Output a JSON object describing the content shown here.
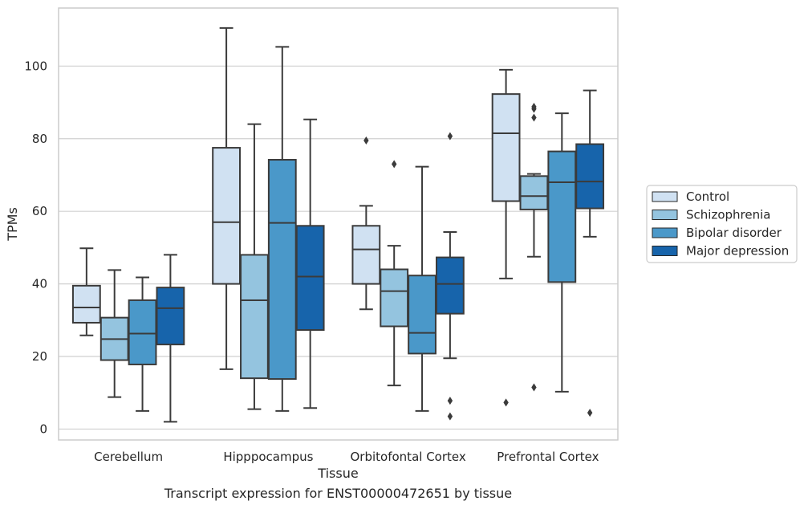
{
  "caption": "Transcript expression for ENST00000472651 by tissue",
  "chart_data": {
    "type": "box",
    "xlabel": "Tissue",
    "ylabel": "TPMs",
    "ylim": [
      -3,
      116
    ],
    "yticks": [
      0,
      20,
      40,
      60,
      80,
      100
    ],
    "grid": "horizontal",
    "legend_position": "right",
    "categories": [
      "Cerebellum",
      "Hipppocampus",
      "Orbitofontal Cortex",
      "Prefrontal Cortex"
    ],
    "series": [
      {
        "name": "Control",
        "color": "#d0e1f2",
        "boxes": [
          {
            "whislo": 25.8,
            "q1": 29.3,
            "med": 33.5,
            "q3": 39.5,
            "whishi": 49.8,
            "fliers": []
          },
          {
            "whislo": 16.5,
            "q1": 40.0,
            "med": 57.0,
            "q3": 77.5,
            "whishi": 110.5,
            "fliers": []
          },
          {
            "whislo": 33.0,
            "q1": 40.0,
            "med": 49.5,
            "q3": 56.0,
            "whishi": 61.5,
            "fliers": [
              79.5
            ]
          },
          {
            "whislo": 41.5,
            "q1": 62.8,
            "med": 81.5,
            "q3": 92.3,
            "whishi": 99.0,
            "fliers": [
              7.3
            ]
          }
        ]
      },
      {
        "name": "Schizophrenia",
        "color": "#94c4df",
        "boxes": [
          {
            "whislo": 8.8,
            "q1": 19.0,
            "med": 24.8,
            "q3": 30.7,
            "whishi": 43.8,
            "fliers": []
          },
          {
            "whislo": 5.5,
            "q1": 14.0,
            "med": 35.5,
            "q3": 48.0,
            "whishi": 84.0,
            "fliers": []
          },
          {
            "whislo": 12.0,
            "q1": 28.3,
            "med": 38.0,
            "q3": 44.0,
            "whishi": 50.5,
            "fliers": [
              73.0
            ]
          },
          {
            "whislo": 47.5,
            "q1": 60.5,
            "med": 64.2,
            "q3": 69.7,
            "whishi": 70.3,
            "fliers": [
              88.2,
              88.8,
              85.8,
              11.5
            ]
          }
        ]
      },
      {
        "name": "Bipolar disorder",
        "color": "#4a98c9",
        "boxes": [
          {
            "whislo": 5.0,
            "q1": 17.8,
            "med": 26.3,
            "q3": 35.5,
            "whishi": 41.8,
            "fliers": []
          },
          {
            "whislo": 5.0,
            "q1": 13.8,
            "med": 56.8,
            "q3": 74.2,
            "whishi": 105.3,
            "fliers": []
          },
          {
            "whislo": 5.0,
            "q1": 20.8,
            "med": 26.5,
            "q3": 42.3,
            "whishi": 72.3,
            "fliers": []
          },
          {
            "whislo": 10.3,
            "q1": 40.5,
            "med": 68.0,
            "q3": 76.5,
            "whishi": 87.0,
            "fliers": []
          }
        ]
      },
      {
        "name": "Major depression",
        "color": "#1764ab",
        "boxes": [
          {
            "whislo": 2.0,
            "q1": 23.3,
            "med": 33.3,
            "q3": 39.0,
            "whishi": 48.0,
            "fliers": []
          },
          {
            "whislo": 5.8,
            "q1": 27.3,
            "med": 42.0,
            "q3": 56.0,
            "whishi": 85.3,
            "fliers": []
          },
          {
            "whislo": 19.5,
            "q1": 31.8,
            "med": 40.0,
            "q3": 47.3,
            "whishi": 54.3,
            "fliers": [
              80.7,
              7.8,
              3.5
            ]
          },
          {
            "whislo": 53.0,
            "q1": 60.8,
            "med": 68.2,
            "q3": 78.5,
            "whishi": 93.3,
            "fliers": [
              4.5
            ]
          }
        ]
      }
    ]
  }
}
